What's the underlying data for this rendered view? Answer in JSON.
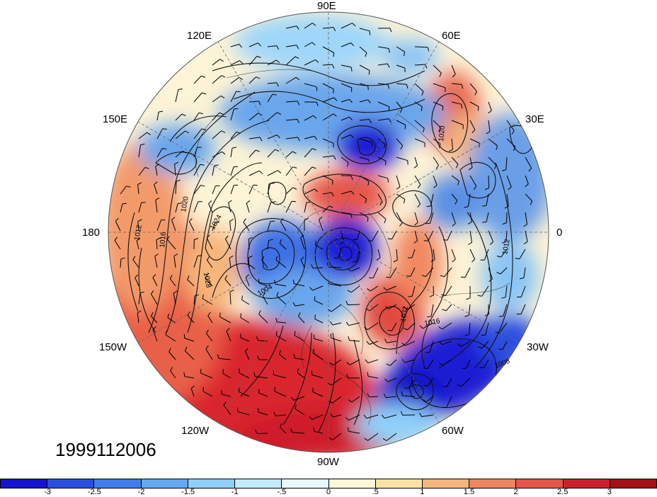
{
  "map": {
    "projection": "north-polar-stereographic",
    "timestamp": "1999112006",
    "longitude_labels": {
      "top": "90E",
      "upper_left_1": "120E",
      "upper_right_1": "60E",
      "upper_left_2": "150E",
      "upper_right_2": "30E",
      "left": "180",
      "right": "0",
      "lower_left_2": "150W",
      "lower_right_2": "30W",
      "lower_left_1": "120W",
      "lower_right_1": "60W",
      "bottom": "90W"
    },
    "contour_labels": [
      "1012",
      "1016",
      "1020",
      "1024",
      "1028",
      "1032",
      "1004",
      "1008",
      "1012",
      "1016",
      "1020"
    ],
    "anomaly_colors": {
      "warm_strong": "#c8102e",
      "cold_strong": "#1b1fd4"
    }
  },
  "colorbar": {
    "colors": [
      "#1414d2",
      "#2a4ee0",
      "#3f7ded",
      "#63a8f3",
      "#8fd0fa",
      "#c2ecfd",
      "#e8f7fd",
      "#fdf7d8",
      "#fbe2a4",
      "#f6b67b",
      "#ee8560",
      "#e6544a",
      "#cf1f2c",
      "#a50f15"
    ],
    "tick_labels": [
      "-3",
      "-2.5",
      "-2",
      "-1.5",
      "-1",
      "-.5",
      "0",
      ".5",
      "1",
      "1.5",
      "2",
      "2.5",
      "3"
    ]
  }
}
